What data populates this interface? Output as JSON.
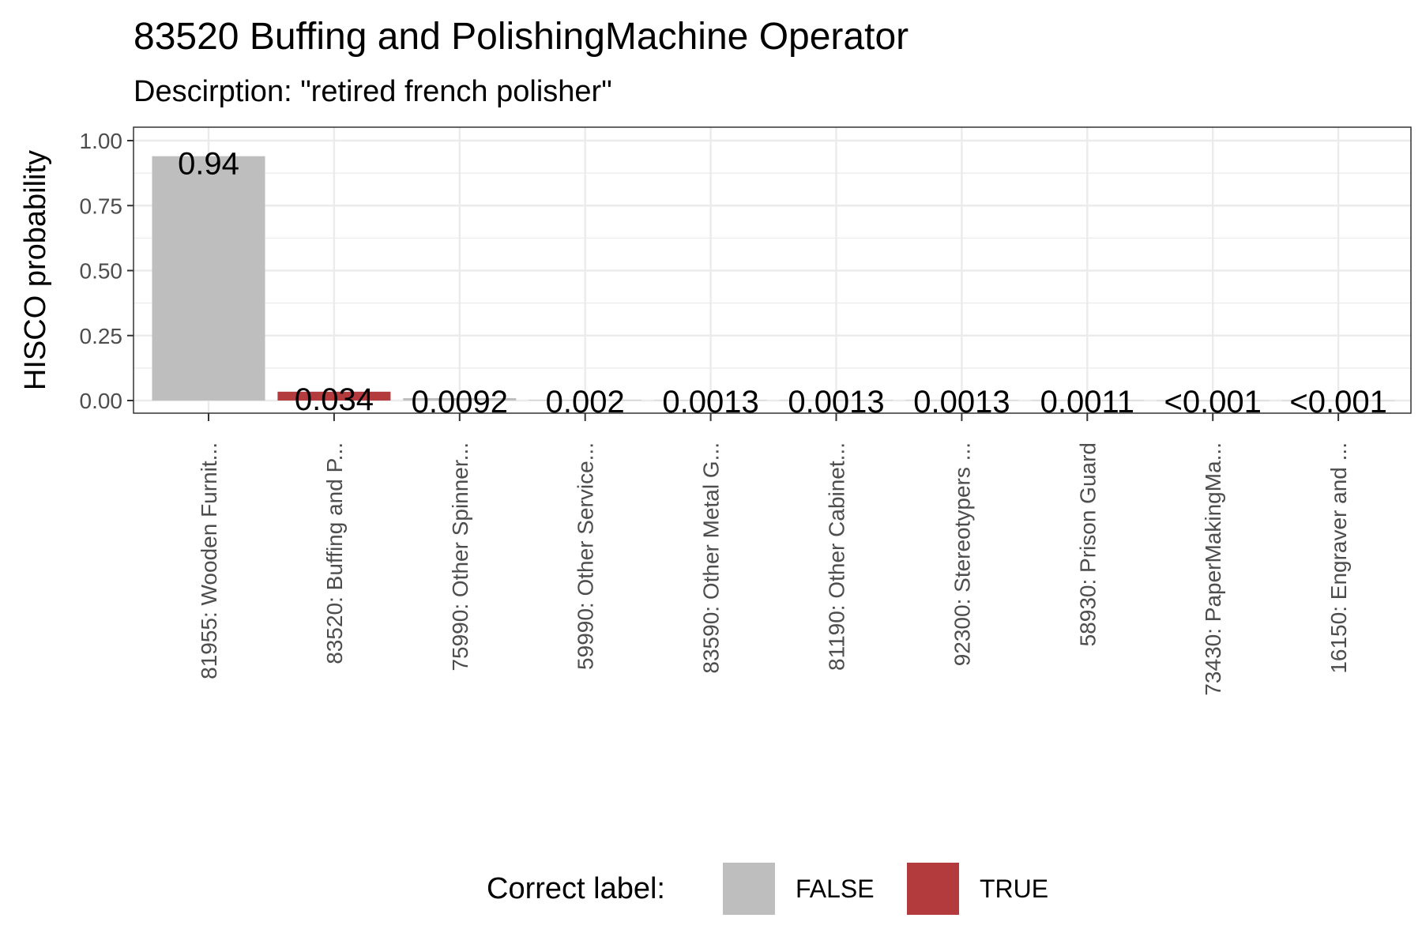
{
  "chart_data": {
    "type": "bar",
    "title": "83520 Buffing and PolishingMachine Operator",
    "subtitle": "Descirption: \"retired french polisher\"",
    "xlabel": "",
    "ylabel": "HISCO probability",
    "ylim": [
      0,
      1.05
    ],
    "yticks": [
      0.0,
      0.25,
      0.5,
      0.75,
      1.0
    ],
    "ytick_labels": [
      "0.00",
      "0.25",
      "0.50",
      "0.75",
      "1.00"
    ],
    "grid": true,
    "categories": [
      "81955: Wooden Furnit...",
      "83520: Buffing and P...",
      "75990: Other Spinner...",
      "59990: Other Service...",
      "83590: Other Metal G...",
      "81190: Other Cabinet...",
      "92300: Stereotypers ...",
      "58930: Prison Guard",
      "73430: PaperMakingMa...",
      "16150: Engraver and ..."
    ],
    "values": [
      0.94,
      0.034,
      0.0092,
      0.002,
      0.0013,
      0.0013,
      0.0013,
      0.0011,
      0.0005,
      0.0005
    ],
    "data_labels": [
      "0.94",
      "0.034",
      "0.0092",
      "0.002",
      "0.0013",
      "0.0013",
      "0.0013",
      "0.0011",
      "<0.001",
      "<0.001"
    ],
    "correct": [
      false,
      true,
      false,
      false,
      false,
      false,
      false,
      false,
      false,
      false
    ],
    "colors": {
      "FALSE": "#bebebe",
      "TRUE": "#b33b3e"
    },
    "legend": {
      "title": "Correct label:",
      "position": "bottom",
      "entries": [
        {
          "label": "FALSE",
          "key": "FALSE"
        },
        {
          "label": "TRUE",
          "key": "TRUE"
        }
      ]
    }
  }
}
